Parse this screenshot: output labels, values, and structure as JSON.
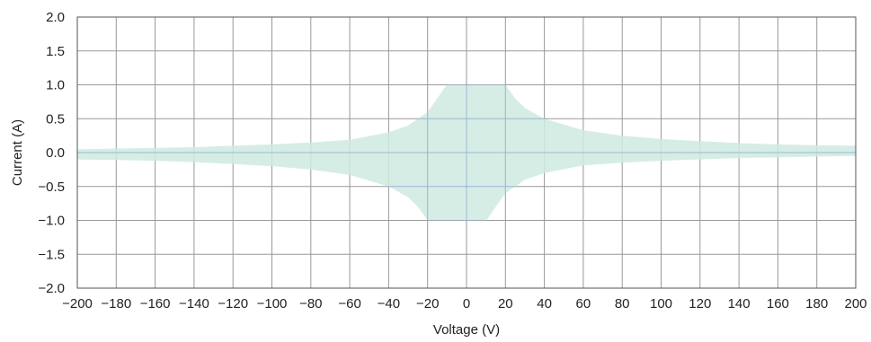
{
  "chart_data": {
    "type": "area",
    "title": "",
    "xlabel": "Voltage (V)",
    "ylabel": "Current (A)",
    "xlim": [
      -200,
      200
    ],
    "ylim": [
      -2.0,
      2.0
    ],
    "x_ticks": [
      -200,
      -180,
      -160,
      -140,
      -120,
      -100,
      -80,
      -60,
      -40,
      -20,
      0,
      20,
      40,
      60,
      80,
      100,
      120,
      140,
      160,
      180,
      200
    ],
    "y_ticks": [
      2.0,
      1.5,
      1.0,
      0.5,
      0.0,
      -0.5,
      -1.0,
      -1.5,
      -2.0
    ],
    "x_tick_labels": [
      "−200",
      "−180",
      "−160",
      "−140",
      "−120",
      "−100",
      "−80",
      "−60",
      "−40",
      "−20",
      "0",
      "20",
      "40",
      "60",
      "80",
      "100",
      "120",
      "140",
      "160",
      "180",
      "200"
    ],
    "y_tick_labels": [
      "2.0",
      "1.5",
      "1.0",
      "0.5",
      "0.0",
      "−0.5",
      "−1.0",
      "−1.5",
      "−2.0"
    ],
    "grid": true,
    "fill_color": "#cfeae2",
    "grid_color": "#999999",
    "region": {
      "upper": [
        {
          "x": -200,
          "y": 0.05
        },
        {
          "x": -180,
          "y": 0.06
        },
        {
          "x": -160,
          "y": 0.07
        },
        {
          "x": -140,
          "y": 0.08
        },
        {
          "x": -120,
          "y": 0.1
        },
        {
          "x": -100,
          "y": 0.12
        },
        {
          "x": -80,
          "y": 0.15
        },
        {
          "x": -60,
          "y": 0.19
        },
        {
          "x": -40,
          "y": 0.3
        },
        {
          "x": -30,
          "y": 0.4
        },
        {
          "x": -20,
          "y": 0.6
        },
        {
          "x": -15,
          "y": 0.8
        },
        {
          "x": -11,
          "y": 0.97
        },
        {
          "x": -10,
          "y": 1.0
        },
        {
          "x": 20,
          "y": 1.0
        },
        {
          "x": 25,
          "y": 0.8
        },
        {
          "x": 30,
          "y": 0.66
        },
        {
          "x": 40,
          "y": 0.5
        },
        {
          "x": 60,
          "y": 0.33
        },
        {
          "x": 80,
          "y": 0.25
        },
        {
          "x": 100,
          "y": 0.2
        },
        {
          "x": 120,
          "y": 0.17
        },
        {
          "x": 140,
          "y": 0.14
        },
        {
          "x": 160,
          "y": 0.12
        },
        {
          "x": 180,
          "y": 0.11
        },
        {
          "x": 200,
          "y": 0.1
        }
      ],
      "lower": [
        {
          "x": -200,
          "y": -0.1
        },
        {
          "x": -180,
          "y": -0.11
        },
        {
          "x": -160,
          "y": -0.12
        },
        {
          "x": -140,
          "y": -0.14
        },
        {
          "x": -120,
          "y": -0.17
        },
        {
          "x": -100,
          "y": -0.2
        },
        {
          "x": -80,
          "y": -0.25
        },
        {
          "x": -60,
          "y": -0.33
        },
        {
          "x": -40,
          "y": -0.5
        },
        {
          "x": -30,
          "y": -0.66
        },
        {
          "x": -25,
          "y": -0.8
        },
        {
          "x": -20,
          "y": -1.0
        },
        {
          "x": 10,
          "y": -1.0
        },
        {
          "x": 11,
          "y": -0.97
        },
        {
          "x": 15,
          "y": -0.8
        },
        {
          "x": 20,
          "y": -0.6
        },
        {
          "x": 30,
          "y": -0.4
        },
        {
          "x": 40,
          "y": -0.3
        },
        {
          "x": 60,
          "y": -0.19
        },
        {
          "x": 80,
          "y": -0.15
        },
        {
          "x": 100,
          "y": -0.12
        },
        {
          "x": 120,
          "y": -0.1
        },
        {
          "x": 140,
          "y": -0.08
        },
        {
          "x": 160,
          "y": -0.07
        },
        {
          "x": 180,
          "y": -0.06
        },
        {
          "x": 200,
          "y": -0.05
        }
      ]
    },
    "highlight_grid_color": "#9ab8d8",
    "highlight_x": [
      -20,
      0,
      20
    ],
    "highlight_y": [
      1.0,
      0.5,
      0.0,
      -0.5,
      -1.0
    ]
  }
}
